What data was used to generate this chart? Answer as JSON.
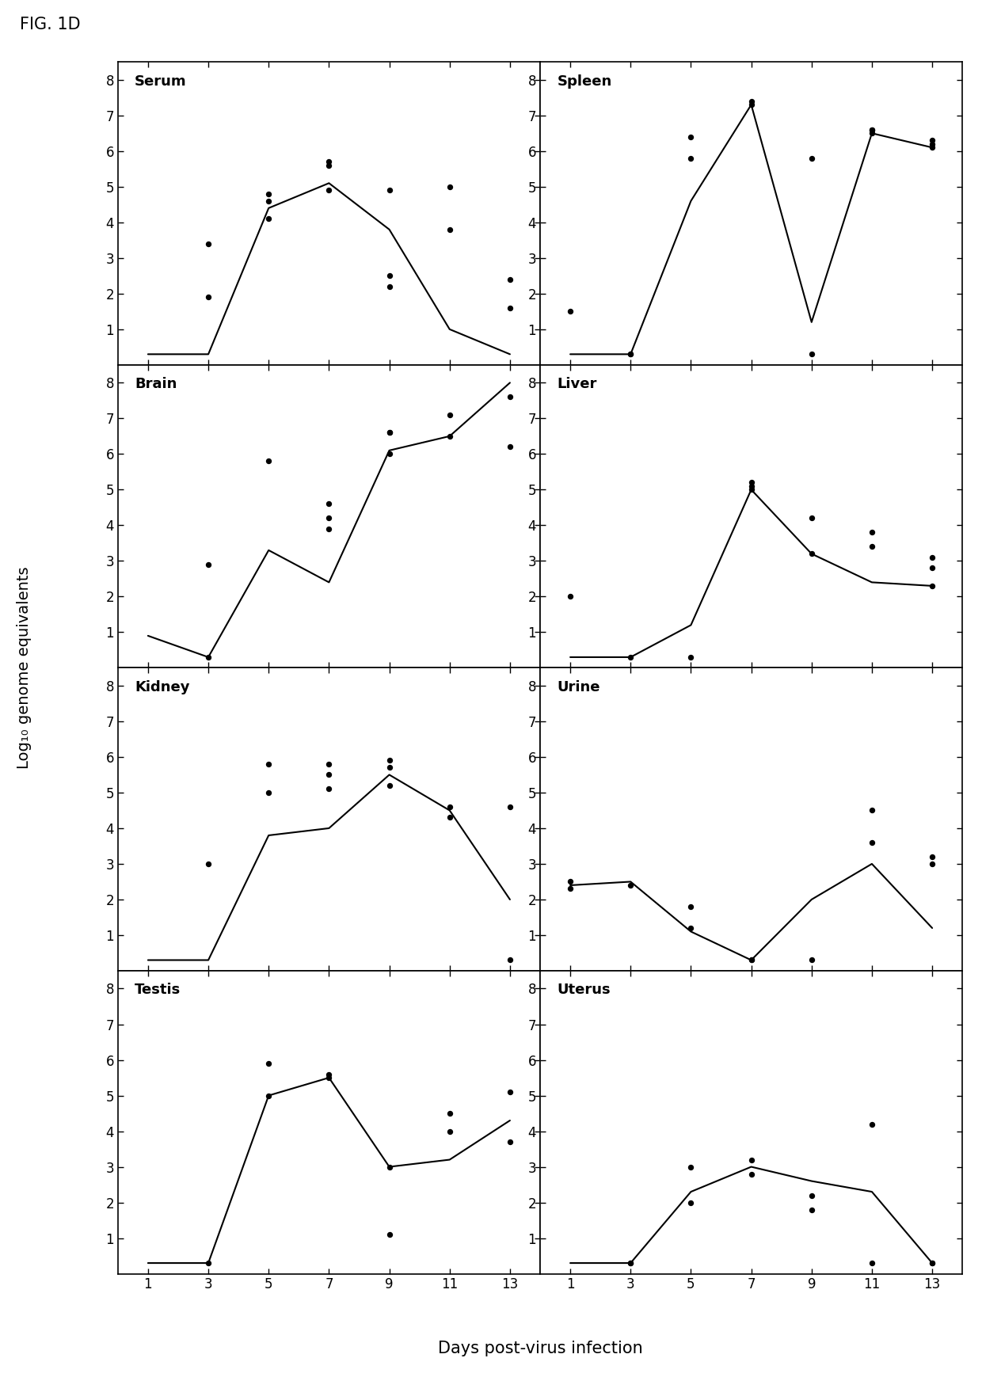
{
  "fig_label": "FIG. 1D",
  "ylabel": "Log₁₀ genome equivalents",
  "xlabel": "Days post-virus infection",
  "x_ticks": [
    1,
    3,
    5,
    7,
    9,
    11,
    13
  ],
  "ylim": [
    0,
    8.5
  ],
  "yticks": [
    1,
    2,
    3,
    4,
    5,
    6,
    7,
    8
  ],
  "panels": [
    {
      "title": "Serum",
      "line_x": [
        1,
        3,
        5,
        7,
        9,
        11,
        13
      ],
      "line_y": [
        0.3,
        0.3,
        4.4,
        5.1,
        3.8,
        1.0,
        0.3
      ],
      "scatter_x": [
        3,
        3,
        5,
        5,
        5,
        7,
        7,
        7,
        9,
        9,
        9,
        11,
        11,
        13,
        13
      ],
      "scatter_y": [
        3.4,
        1.9,
        4.6,
        4.8,
        4.1,
        5.7,
        5.6,
        4.9,
        4.9,
        2.5,
        2.2,
        5.0,
        3.8,
        2.4,
        1.6
      ]
    },
    {
      "title": "Spleen",
      "line_x": [
        1,
        3,
        5,
        7,
        9,
        11,
        13
      ],
      "line_y": [
        0.3,
        0.3,
        4.6,
        7.3,
        1.2,
        6.5,
        6.1
      ],
      "scatter_x": [
        1,
        3,
        3,
        5,
        5,
        7,
        7,
        9,
        9,
        11,
        11,
        11,
        13,
        13,
        13
      ],
      "scatter_y": [
        1.5,
        0.3,
        0.3,
        6.4,
        5.8,
        7.4,
        7.3,
        5.8,
        0.3,
        6.6,
        6.6,
        6.5,
        6.3,
        6.2,
        6.1
      ]
    },
    {
      "title": "Brain",
      "line_x": [
        1,
        3,
        5,
        7,
        9,
        11,
        13
      ],
      "line_y": [
        0.9,
        0.3,
        3.3,
        2.4,
        6.1,
        6.5,
        8.0
      ],
      "scatter_x": [
        3,
        3,
        5,
        7,
        7,
        7,
        9,
        9,
        9,
        11,
        11,
        13,
        13
      ],
      "scatter_y": [
        2.9,
        0.3,
        5.8,
        3.9,
        4.6,
        4.2,
        6.6,
        6.6,
        6.0,
        7.1,
        6.5,
        7.6,
        6.2
      ]
    },
    {
      "title": "Liver",
      "line_x": [
        1,
        3,
        5,
        7,
        9,
        11,
        13
      ],
      "line_y": [
        0.3,
        0.3,
        1.2,
        5.0,
        3.2,
        2.4,
        2.3
      ],
      "scatter_x": [
        1,
        3,
        5,
        7,
        7,
        7,
        9,
        9,
        11,
        11,
        13,
        13,
        13
      ],
      "scatter_y": [
        2.0,
        0.3,
        0.3,
        5.2,
        5.1,
        5.0,
        4.2,
        3.2,
        3.8,
        3.4,
        3.1,
        2.8,
        2.3
      ]
    },
    {
      "title": "Kidney",
      "line_x": [
        1,
        3,
        5,
        7,
        9,
        11,
        13
      ],
      "line_y": [
        0.3,
        0.3,
        3.8,
        4.0,
        5.5,
        4.5,
        2.0
      ],
      "scatter_x": [
        3,
        5,
        5,
        7,
        7,
        7,
        9,
        9,
        9,
        11,
        11,
        13,
        13
      ],
      "scatter_y": [
        3.0,
        5.8,
        5.0,
        5.8,
        5.5,
        5.1,
        5.7,
        5.2,
        5.9,
        4.6,
        4.3,
        4.6,
        0.3
      ]
    },
    {
      "title": "Urine",
      "line_x": [
        1,
        3,
        5,
        7,
        9,
        11,
        13
      ],
      "line_y": [
        2.4,
        2.5,
        1.1,
        0.3,
        2.0,
        3.0,
        1.2
      ],
      "scatter_x": [
        1,
        1,
        3,
        5,
        5,
        7,
        7,
        9,
        11,
        11,
        13,
        13
      ],
      "scatter_y": [
        2.5,
        2.3,
        2.4,
        1.8,
        1.2,
        0.3,
        0.3,
        0.3,
        4.5,
        3.6,
        3.2,
        3.0
      ]
    },
    {
      "title": "Testis",
      "line_x": [
        1,
        3,
        5,
        7,
        9,
        11,
        13
      ],
      "line_y": [
        0.3,
        0.3,
        5.0,
        5.5,
        3.0,
        3.2,
        4.3
      ],
      "scatter_x": [
        3,
        5,
        5,
        7,
        7,
        9,
        9,
        11,
        11,
        13,
        13
      ],
      "scatter_y": [
        0.3,
        5.9,
        5.0,
        5.6,
        5.5,
        3.0,
        1.1,
        4.5,
        4.0,
        5.1,
        3.7
      ]
    },
    {
      "title": "Uterus",
      "line_x": [
        1,
        3,
        5,
        7,
        9,
        11,
        13
      ],
      "line_y": [
        0.3,
        0.3,
        2.3,
        3.0,
        2.6,
        2.3,
        0.3
      ],
      "scatter_x": [
        3,
        3,
        5,
        5,
        7,
        7,
        9,
        9,
        11,
        11,
        13,
        13
      ],
      "scatter_y": [
        0.3,
        0.3,
        3.0,
        2.0,
        3.2,
        2.8,
        2.2,
        1.8,
        4.2,
        0.3,
        0.3,
        0.3
      ]
    }
  ]
}
